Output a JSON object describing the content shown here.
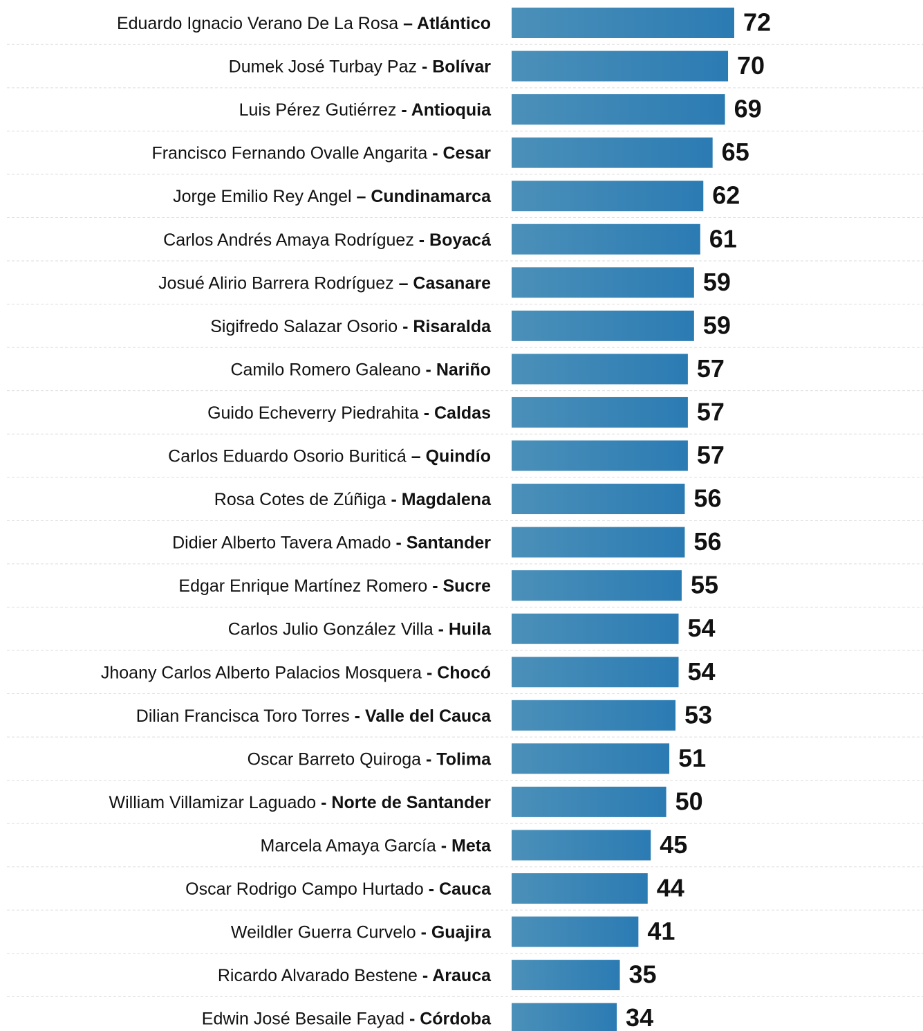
{
  "chart_data": {
    "type": "bar",
    "orientation": "horizontal",
    "color": "#2b7bb3",
    "categories": [
      "Eduardo Ignacio Verano De La Rosa",
      "Dumek José Turbay Paz",
      "Luis Pérez Gutiérrez",
      "Francisco Fernando Ovalle Angarita",
      "Jorge Emilio Rey Angel",
      "Carlos Andrés Amaya Rodríguez",
      "Josué Alirio Barrera Rodríguez",
      "Sigifredo Salazar Osorio",
      "Camilo Romero Galeano",
      "Guido Echeverry Piedrahita",
      "Carlos Eduardo Osorio Buriticá",
      "Rosa Cotes de Zúñiga",
      "Didier Alberto Tavera Amado",
      "Edgar Enrique Martínez Romero",
      "Carlos Julio González Villa",
      "Jhoany Carlos Alberto Palacios Mosquera",
      "Dilian Francisca Toro Torres",
      "Oscar Barreto Quiroga",
      "William Villamizar Laguado",
      "Marcela Amaya García",
      "Oscar Rodrigo Campo Hurtado",
      "Weildler Guerra Curvelo",
      "Ricardo Alvarado Bestene",
      "Edwin José Besaile Fayad"
    ],
    "groups": [
      "– Atlántico",
      "- Bolívar",
      "- Antioquia",
      "- Cesar",
      "– Cundinamarca",
      "- Boyacá",
      "– Casanare",
      "- Risaralda",
      "- Nariño",
      "- Caldas",
      "– Quindío",
      "- Magdalena",
      "- Santander",
      "- Sucre",
      "- Huila",
      "- Chocó",
      "- Valle del Cauca",
      "- Tolima",
      "- Norte de Santander",
      "- Meta",
      "- Cauca",
      "- Guajira",
      "- Arauca",
      "- Córdoba"
    ],
    "values": [
      72,
      70,
      69,
      65,
      62,
      61,
      59,
      59,
      57,
      57,
      57,
      56,
      56,
      55,
      54,
      54,
      53,
      51,
      50,
      45,
      44,
      41,
      35,
      34
    ]
  }
}
